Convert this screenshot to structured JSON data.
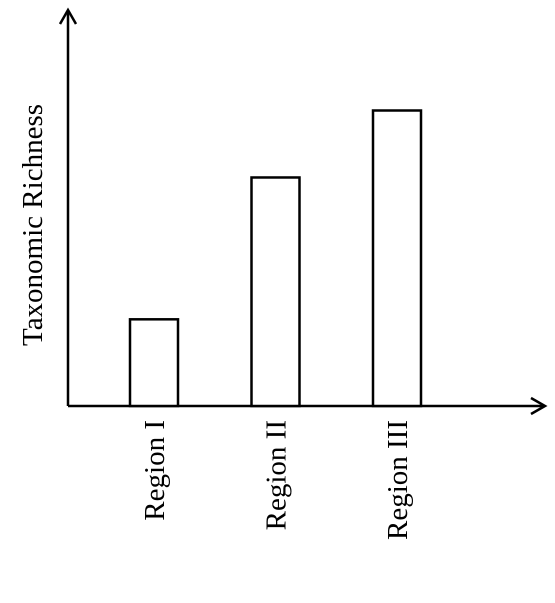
{
  "chart_data": {
    "type": "bar",
    "y_label": "Taxonomic Richness",
    "categories": [
      "Region I",
      "Region II",
      "Region III"
    ],
    "values": [
      22,
      58,
      75
    ],
    "color": "#ffffff",
    "ylim": [
      0,
      100
    ]
  }
}
